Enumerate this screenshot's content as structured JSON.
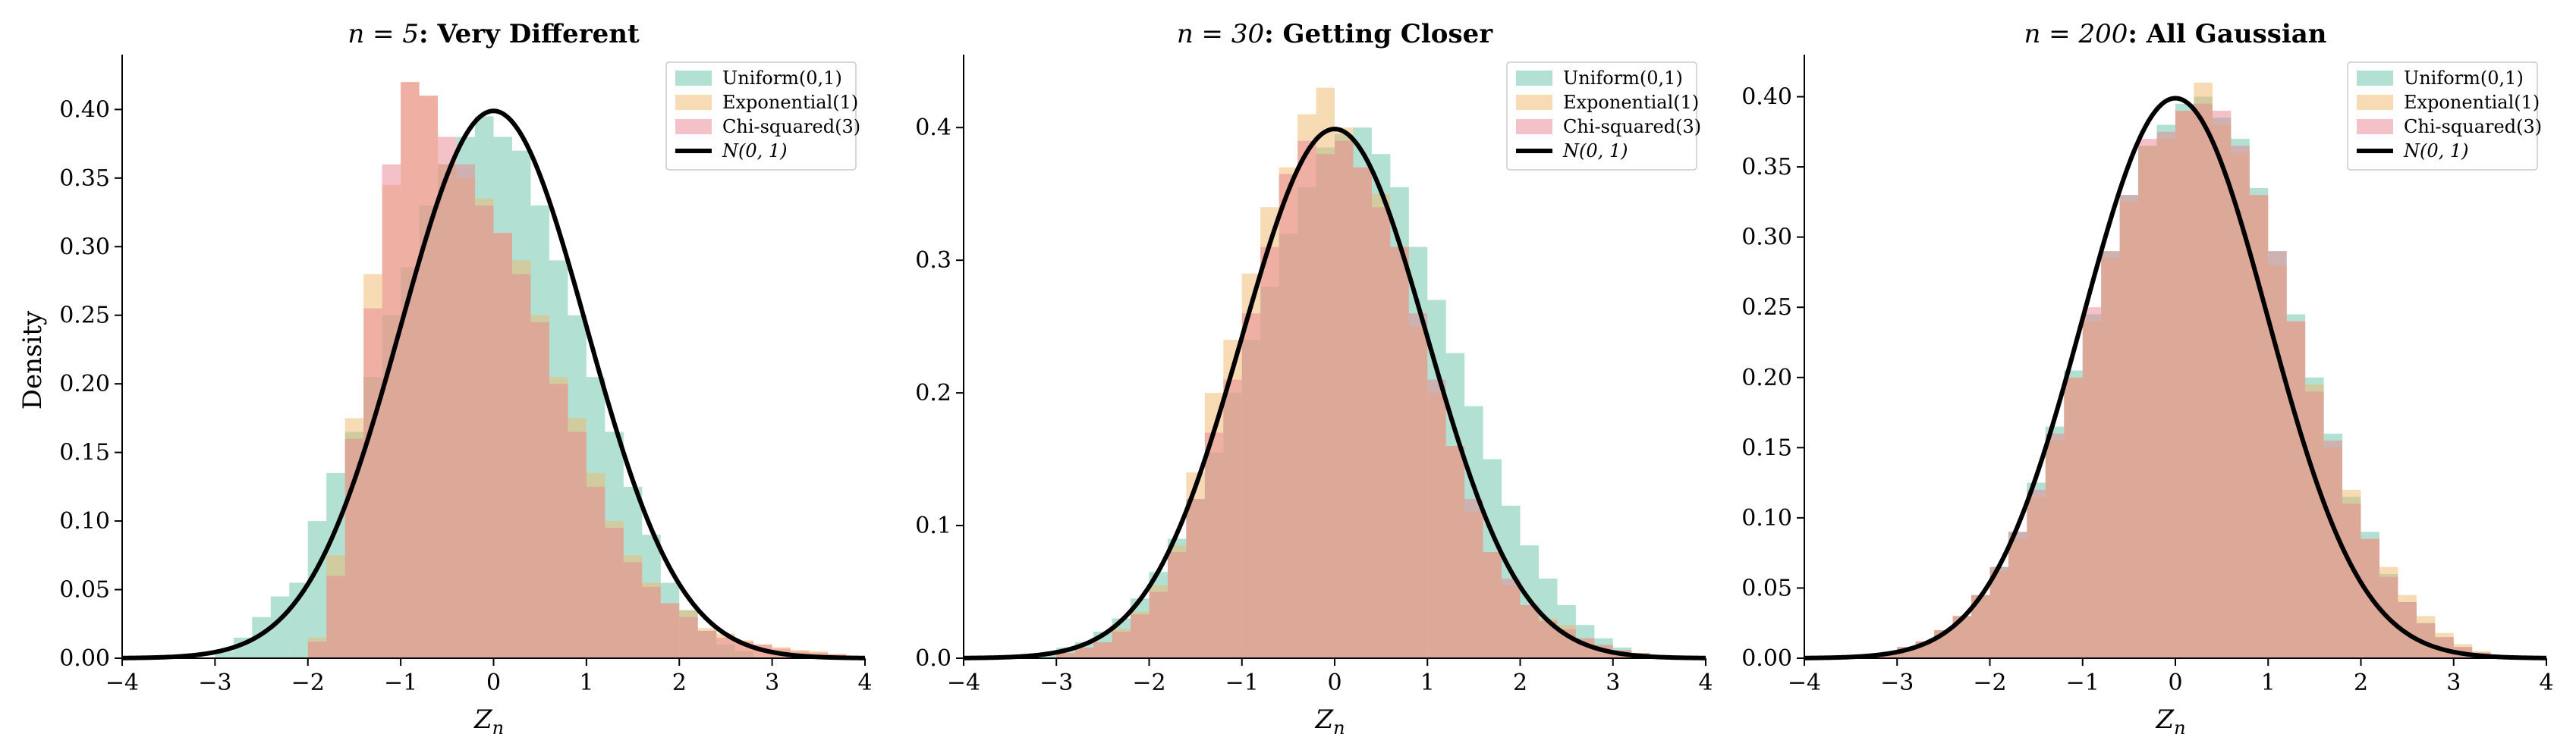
{
  "figure": {
    "ylabel": "Density",
    "xlabel": "Z_n",
    "xlim": [
      -4,
      4
    ],
    "legend_placement": "upper right",
    "colors": {
      "uniform": "#66c2a5",
      "exponential": "#f0b86b",
      "chisq": "#e8838f",
      "normal_curve": "#000000",
      "overlap": "#c8947a"
    }
  },
  "chart_data": [
    {
      "type": "histogram",
      "title_math": "n = 5",
      "title_text": ": Very Different",
      "xlabel": "Z_n",
      "ylabel": "Density",
      "xlim": [
        -4,
        4
      ],
      "ylim": [
        0,
        0.44
      ],
      "xticks": [
        "−4",
        "−3",
        "−2",
        "−1",
        "0",
        "1",
        "2",
        "3",
        "4"
      ],
      "yticks": [
        "0.00",
        "0.05",
        "0.10",
        "0.15",
        "0.20",
        "0.25",
        "0.30",
        "0.35",
        "0.40"
      ],
      "yticks_values": [
        0,
        0.05,
        0.1,
        0.15,
        0.2,
        0.25,
        0.3,
        0.35,
        0.4
      ],
      "legend": [
        "Uniform(0,1)",
        "Exponential(1)",
        "Chi-squared(3)",
        "N(0, 1)"
      ],
      "grid": false,
      "series": [
        {
          "name": "Uniform(0,1)",
          "bin_start": -3.2,
          "bin_width": 0.2,
          "values": [
            0.0,
            0.005,
            0.015,
            0.03,
            0.045,
            0.055,
            0.1,
            0.135,
            0.165,
            0.205,
            0.25,
            0.285,
            0.33,
            0.36,
            0.38,
            0.395,
            0.38,
            0.37,
            0.33,
            0.29,
            0.25,
            0.205,
            0.165,
            0.125,
            0.09,
            0.055,
            0.035,
            0.02,
            0.01,
            0.005,
            0.0
          ]
        },
        {
          "name": "Exponential(1)",
          "bin_start": -2.0,
          "bin_width": 0.2,
          "values": [
            0.015,
            0.075,
            0.175,
            0.28,
            0.345,
            0.42,
            0.41,
            0.36,
            0.35,
            0.335,
            0.31,
            0.29,
            0.25,
            0.205,
            0.175,
            0.135,
            0.1,
            0.075,
            0.055,
            0.04,
            0.035,
            0.022,
            0.018,
            0.013,
            0.01,
            0.008,
            0.006,
            0.005,
            0.003
          ]
        },
        {
          "name": "Chi-squared(3)",
          "bin_start": -2.0,
          "bin_width": 0.2,
          "values": [
            0.012,
            0.06,
            0.16,
            0.255,
            0.36,
            0.42,
            0.41,
            0.38,
            0.36,
            0.33,
            0.31,
            0.28,
            0.245,
            0.2,
            0.165,
            0.125,
            0.095,
            0.07,
            0.052,
            0.04,
            0.03,
            0.02,
            0.015,
            0.012,
            0.01,
            0.007,
            0.005,
            0.004,
            0.003
          ]
        },
        {
          "name": "N(0, 1)",
          "kind": "pdf",
          "mean": 0,
          "sd": 1
        }
      ]
    },
    {
      "type": "histogram",
      "title_math": "n = 30",
      "title_text": ": Getting Closer",
      "xlabel": "Z_n",
      "ylabel": "",
      "xlim": [
        -4,
        4
      ],
      "ylim": [
        0,
        0.455
      ],
      "xticks": [
        "−4",
        "−3",
        "−2",
        "−1",
        "0",
        "1",
        "2",
        "3",
        "4"
      ],
      "yticks": [
        "0.0",
        "0.1",
        "0.2",
        "0.3",
        "0.4"
      ],
      "yticks_values": [
        0,
        0.1,
        0.2,
        0.3,
        0.4
      ],
      "legend": [
        "Uniform(0,1)",
        "Exponential(1)",
        "Chi-squared(3)",
        "N(0, 1)"
      ],
      "grid": false,
      "series": [
        {
          "name": "Uniform(0,1)",
          "bin_start": -3.2,
          "bin_width": 0.2,
          "values": [
            0.003,
            0.008,
            0.012,
            0.02,
            0.03,
            0.045,
            0.065,
            0.09,
            0.12,
            0.155,
            0.2,
            0.24,
            0.28,
            0.32,
            0.355,
            0.385,
            0.395,
            0.4,
            0.38,
            0.355,
            0.31,
            0.27,
            0.23,
            0.19,
            0.15,
            0.115,
            0.085,
            0.06,
            0.04,
            0.025,
            0.015,
            0.008,
            0.004
          ]
        },
        {
          "name": "Exponential(1)",
          "bin_start": -3.0,
          "bin_width": 0.2,
          "values": [
            0.004,
            0.008,
            0.012,
            0.022,
            0.035,
            0.055,
            0.085,
            0.14,
            0.2,
            0.24,
            0.29,
            0.34,
            0.37,
            0.41,
            0.43,
            0.4,
            0.37,
            0.35,
            0.31,
            0.25,
            0.2,
            0.16,
            0.11,
            0.08,
            0.055,
            0.04,
            0.03,
            0.025,
            0.015,
            0.01,
            0.006,
            0.004,
            0.002
          ]
        },
        {
          "name": "Chi-squared(3)",
          "bin_start": -3.0,
          "bin_width": 0.2,
          "values": [
            0.004,
            0.008,
            0.012,
            0.02,
            0.033,
            0.05,
            0.08,
            0.12,
            0.17,
            0.21,
            0.26,
            0.31,
            0.365,
            0.39,
            0.38,
            0.39,
            0.37,
            0.34,
            0.31,
            0.26,
            0.21,
            0.16,
            0.12,
            0.08,
            0.06,
            0.04,
            0.028,
            0.022,
            0.015,
            0.01,
            0.006,
            0.004,
            0.002
          ]
        },
        {
          "name": "N(0, 1)",
          "kind": "pdf",
          "mean": 0,
          "sd": 1
        }
      ]
    },
    {
      "type": "histogram",
      "title_math": "n = 200",
      "title_text": ": All Gaussian",
      "xlabel": "Z_n",
      "ylabel": "",
      "xlim": [
        -4,
        4
      ],
      "ylim": [
        0,
        0.43
      ],
      "xticks": [
        "−4",
        "−3",
        "−2",
        "−1",
        "0",
        "1",
        "2",
        "3",
        "4"
      ],
      "yticks": [
        "0.00",
        "0.05",
        "0.10",
        "0.15",
        "0.20",
        "0.25",
        "0.30",
        "0.35",
        "0.40"
      ],
      "yticks_values": [
        0,
        0.05,
        0.1,
        0.15,
        0.2,
        0.25,
        0.3,
        0.35,
        0.4
      ],
      "legend": [
        "Uniform(0,1)",
        "Exponential(1)",
        "Chi-squared(3)",
        "N(0, 1)"
      ],
      "grid": false,
      "series": [
        {
          "name": "Uniform(0,1)",
          "bin_start": -3.4,
          "bin_width": 0.2,
          "values": [
            0.002,
            0.004,
            0.008,
            0.012,
            0.02,
            0.03,
            0.045,
            0.065,
            0.09,
            0.125,
            0.165,
            0.205,
            0.245,
            0.29,
            0.33,
            0.365,
            0.38,
            0.395,
            0.4,
            0.385,
            0.37,
            0.335,
            0.29,
            0.245,
            0.2,
            0.16,
            0.115,
            0.09,
            0.06,
            0.04,
            0.025,
            0.015,
            0.008,
            0.004
          ]
        },
        {
          "name": "Exponential(1)",
          "bin_start": -3.4,
          "bin_width": 0.2,
          "values": [
            0.002,
            0.004,
            0.007,
            0.012,
            0.02,
            0.03,
            0.045,
            0.062,
            0.085,
            0.115,
            0.155,
            0.2,
            0.24,
            0.285,
            0.325,
            0.365,
            0.37,
            0.39,
            0.41,
            0.38,
            0.36,
            0.33,
            0.28,
            0.24,
            0.195,
            0.15,
            0.12,
            0.085,
            0.065,
            0.045,
            0.03,
            0.018,
            0.01,
            0.005
          ]
        },
        {
          "name": "Chi-squared(3)",
          "bin_start": -3.4,
          "bin_width": 0.2,
          "values": [
            0.002,
            0.004,
            0.008,
            0.012,
            0.02,
            0.03,
            0.045,
            0.065,
            0.09,
            0.12,
            0.16,
            0.2,
            0.25,
            0.29,
            0.33,
            0.37,
            0.375,
            0.39,
            0.395,
            0.39,
            0.365,
            0.33,
            0.29,
            0.24,
            0.19,
            0.155,
            0.11,
            0.085,
            0.058,
            0.04,
            0.025,
            0.015,
            0.008,
            0.004
          ]
        },
        {
          "name": "N(0, 1)",
          "kind": "pdf",
          "mean": 0,
          "sd": 1
        }
      ]
    }
  ]
}
